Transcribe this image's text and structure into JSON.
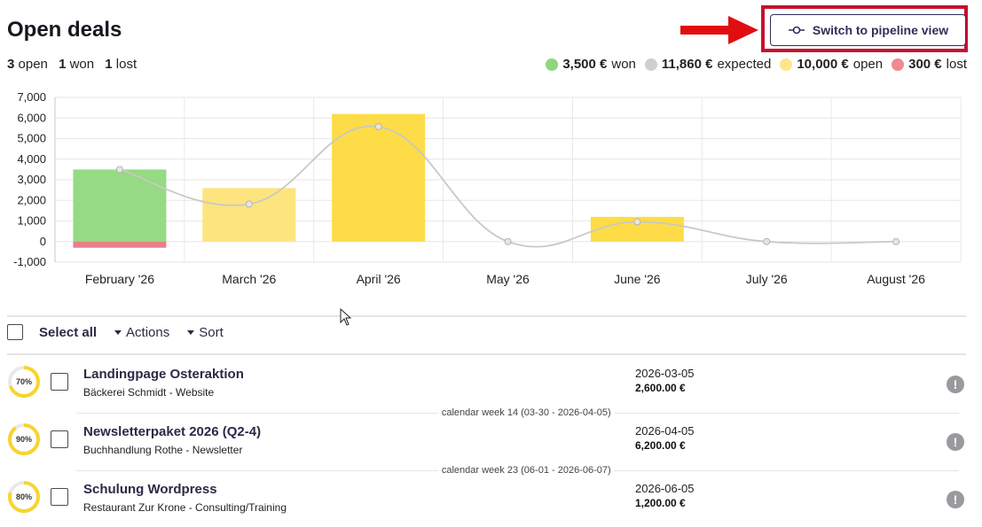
{
  "header": {
    "title": "Open deals",
    "counts": [
      {
        "num": "3",
        "label": "open"
      },
      {
        "num": "1",
        "label": "won"
      },
      {
        "num": "1",
        "label": "lost"
      }
    ],
    "pipeline_button_label": "Switch to pipeline view"
  },
  "legend": [
    {
      "amount": "3,500 €",
      "label": "won",
      "color": "#8fd67d"
    },
    {
      "amount": "11,860 €",
      "label": "expected",
      "color": "#cfcfcf"
    },
    {
      "amount": "10,000 €",
      "label": "open",
      "color": "#fde68a"
    },
    {
      "amount": "300 €",
      "label": "lost",
      "color": "#ee8a90"
    }
  ],
  "colors": {
    "accent": "#2f2f5a",
    "highlight": "#c8102e",
    "won": "#96da83",
    "lost": "#e8808a",
    "open_light": "#fde47f",
    "open": "#fddc48",
    "expected_line": "#c9c9c4"
  },
  "chart_data": {
    "type": "bar",
    "categories": [
      "February '26",
      "March '26",
      "April '26",
      "May '26",
      "June '26",
      "July '26",
      "August '26"
    ],
    "series": [
      {
        "name": "won",
        "values": [
          3500,
          0,
          0,
          0,
          0,
          0,
          0
        ]
      },
      {
        "name": "lost",
        "values": [
          -300,
          0,
          0,
          0,
          0,
          0,
          0
        ]
      },
      {
        "name": "open",
        "values": [
          0,
          2600,
          6200,
          0,
          1200,
          0,
          0
        ]
      },
      {
        "name": "expected",
        "values": [
          3500,
          1820,
          5580,
          0,
          960,
          0,
          0
        ]
      }
    ],
    "ylim": [
      -1000,
      7000
    ],
    "yticks": [
      "7,000",
      "6,000",
      "5,000",
      "4,000",
      "3,000",
      "2,000",
      "1,000",
      "0",
      "-1,000"
    ],
    "grid": true
  },
  "toolbar": {
    "select_all": "Select all",
    "actions": "Actions",
    "sort": "Sort"
  },
  "deals": [
    {
      "name": "Landingpage Osteraktion",
      "sub": "Bäckerei Schmidt - Website",
      "date": "2026-03-05",
      "amount": "2,600.00 €",
      "probability": "70%",
      "probability_value": 0.7
    },
    {
      "name": "Newsletterpaket 2026 (Q2-4)",
      "sub": "Buchhandlung Rothe - Newsletter",
      "date": "2026-04-05",
      "amount": "6,200.00 €",
      "probability": "90%",
      "probability_value": 0.9
    },
    {
      "name": "Schulung Wordpress",
      "sub": "Restaurant Zur Krone - Consulting/Training",
      "date": "2026-06-05",
      "amount": "1,200.00 €",
      "probability": "80%",
      "probability_value": 0.8
    }
  ],
  "week_labels": [
    "calendar week 14 (03-30 - 2026-04-05)",
    "calendar week 23 (06-01 - 2026-06-07)"
  ]
}
